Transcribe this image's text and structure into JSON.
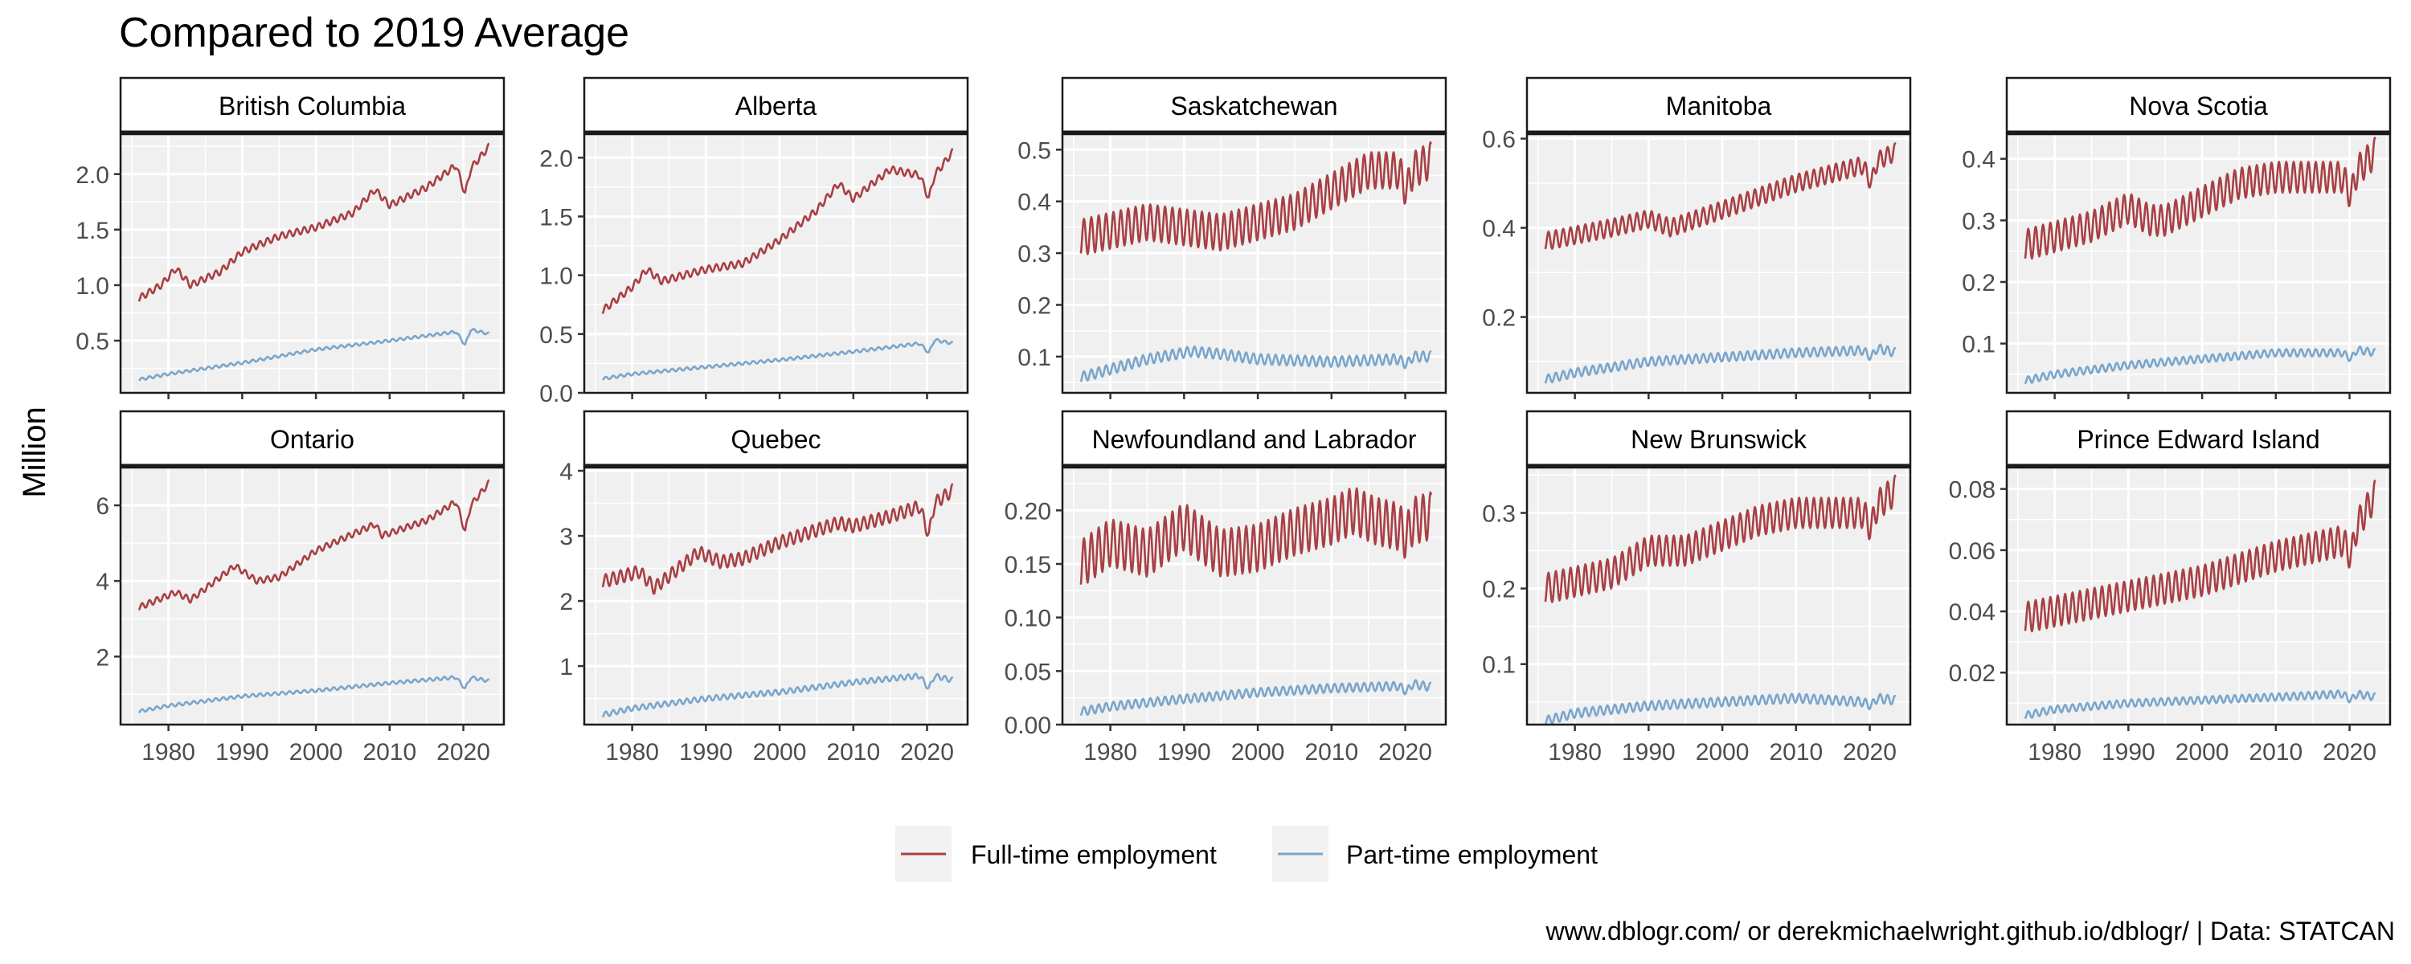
{
  "title": "Compared to 2019 Average",
  "ylabel": "Million",
  "caption": "www.dblogr.com/ or derekmichaelwright.github.io/dblogr/ | Data: STATCAN",
  "legend": {
    "position": "bottom",
    "items": [
      {
        "label": "Full-time employment",
        "color": "#a84044"
      },
      {
        "label": "Part-time employment",
        "color": "#7aa6cc"
      }
    ]
  },
  "style": {
    "panel_background": "#f0f0f0",
    "grid_color": "#ffffff",
    "strip_background": "#ffffff",
    "text_color": "#000000",
    "tick_text_color": "#4d4d4d"
  },
  "chart_data": [
    {
      "type": "line",
      "title": "British Columbia",
      "x_unit": "year",
      "xlim": [
        1973.5,
        2025.5
      ],
      "xticks": [
        1980,
        1990,
        2000,
        2010,
        2020
      ],
      "xtick_labels": [
        "1980",
        "1990",
        "2000",
        "2010",
        "2020"
      ],
      "ylim": [
        0.03,
        2.36
      ],
      "yticks": [
        0.5,
        1.0,
        1.5,
        2.0
      ],
      "ytick_labels": [
        "0.5",
        "1.0",
        "1.5",
        "2.0"
      ],
      "grid": true,
      "series": [
        {
          "name": "Full-time employment",
          "color": "#a84044",
          "seasonal_amplitude": 0.03,
          "x": [
            1976,
            1979,
            1981,
            1983,
            1987,
            1990,
            1995,
            2000,
            2005,
            2008,
            2010,
            2015,
            2019,
            2020.25,
            2021,
            2023.5
          ],
          "y": [
            0.88,
            1.0,
            1.15,
            1.0,
            1.12,
            1.3,
            1.44,
            1.52,
            1.65,
            1.86,
            1.72,
            1.88,
            2.08,
            1.82,
            2.05,
            2.25
          ]
        },
        {
          "name": "Part-time employment",
          "color": "#7aa6cc",
          "seasonal_amplitude": 0.012,
          "x": [
            1976,
            1980,
            1990,
            2000,
            2010,
            2019,
            2020.25,
            2021,
            2023.5
          ],
          "y": [
            0.15,
            0.2,
            0.3,
            0.42,
            0.5,
            0.58,
            0.46,
            0.6,
            0.56
          ]
        }
      ]
    },
    {
      "type": "line",
      "title": "Alberta",
      "x_unit": "year",
      "xlim": [
        1973.5,
        2025.5
      ],
      "xticks": [
        1980,
        1990,
        2000,
        2010,
        2020
      ],
      "xtick_labels": [
        "1980",
        "1990",
        "2000",
        "2010",
        "2020"
      ],
      "ylim": [
        0.0,
        2.2
      ],
      "yticks": [
        0.0,
        0.5,
        1.0,
        1.5,
        2.0
      ],
      "ytick_labels": [
        "0.0",
        "0.5",
        "1.0",
        "1.5",
        "2.0"
      ],
      "grid": true,
      "series": [
        {
          "name": "Full-time employment",
          "color": "#a84044",
          "seasonal_amplitude": 0.03,
          "x": [
            1976,
            1980,
            1982,
            1984,
            1990,
            1995,
            2000,
            2005,
            2008,
            2010,
            2015,
            2019,
            2020.25,
            2021,
            2023.5
          ],
          "y": [
            0.7,
            0.9,
            1.05,
            0.95,
            1.05,
            1.1,
            1.3,
            1.55,
            1.78,
            1.65,
            1.9,
            1.85,
            1.65,
            1.85,
            2.05
          ]
        },
        {
          "name": "Part-time employment",
          "color": "#7aa6cc",
          "seasonal_amplitude": 0.012,
          "x": [
            1976,
            1980,
            1990,
            2000,
            2010,
            2019,
            2020.25,
            2021,
            2023.5
          ],
          "y": [
            0.12,
            0.16,
            0.22,
            0.28,
            0.35,
            0.42,
            0.34,
            0.45,
            0.42
          ]
        }
      ]
    },
    {
      "type": "line",
      "title": "Saskatchewan",
      "x_unit": "year",
      "xlim": [
        1973.5,
        2025.5
      ],
      "xticks": [
        1980,
        1990,
        2000,
        2010,
        2020
      ],
      "xtick_labels": [
        "1980",
        "1990",
        "2000",
        "2010",
        "2020"
      ],
      "ylim": [
        0.03,
        0.53
      ],
      "yticks": [
        0.1,
        0.2,
        0.3,
        0.4,
        0.5
      ],
      "ytick_labels": [
        "0.1",
        "0.2",
        "0.3",
        "0.4",
        "0.5"
      ],
      "grid": true,
      "series": [
        {
          "name": "Full-time employment",
          "color": "#a84044",
          "seasonal_amplitude": 0.035,
          "x": [
            1976,
            1985,
            1990,
            1995,
            2000,
            2005,
            2010,
            2015,
            2019,
            2020.25,
            2021,
            2023.5
          ],
          "y": [
            0.33,
            0.36,
            0.35,
            0.34,
            0.36,
            0.38,
            0.42,
            0.46,
            0.46,
            0.42,
            0.46,
            0.48
          ]
        },
        {
          "name": "Part-time employment",
          "color": "#7aa6cc",
          "seasonal_amplitude": 0.01,
          "x": [
            1976,
            1985,
            1991,
            1995,
            2000,
            2010,
            2019,
            2020.25,
            2021,
            2023.5
          ],
          "y": [
            0.06,
            0.095,
            0.11,
            0.105,
            0.095,
            0.09,
            0.095,
            0.085,
            0.1,
            0.1
          ]
        }
      ]
    },
    {
      "type": "line",
      "title": "Manitoba",
      "x_unit": "year",
      "xlim": [
        1973.5,
        2025.5
      ],
      "xticks": [
        1980,
        1990,
        2000,
        2010,
        2020
      ],
      "xtick_labels": [
        "1980",
        "1990",
        "2000",
        "2010",
        "2020"
      ],
      "ylim": [
        0.03,
        0.61
      ],
      "yticks": [
        0.2,
        0.4,
        0.6
      ],
      "ytick_labels": [
        "0.2",
        "0.4",
        "0.6"
      ],
      "grid": true,
      "series": [
        {
          "name": "Full-time employment",
          "color": "#a84044",
          "seasonal_amplitude": 0.02,
          "x": [
            1976,
            1985,
            1990,
            1993,
            2000,
            2010,
            2019,
            2020.25,
            2021,
            2023.5
          ],
          "y": [
            0.37,
            0.4,
            0.42,
            0.4,
            0.44,
            0.5,
            0.54,
            0.5,
            0.55,
            0.57
          ]
        },
        {
          "name": "Part-time employment",
          "color": "#7aa6cc",
          "seasonal_amplitude": 0.01,
          "x": [
            1976,
            1980,
            1990,
            2000,
            2010,
            2019,
            2020.25,
            2021,
            2023.5
          ],
          "y": [
            0.06,
            0.075,
            0.1,
            0.11,
            0.12,
            0.125,
            0.11,
            0.13,
            0.12
          ]
        }
      ]
    },
    {
      "type": "line",
      "title": "Nova Scotia",
      "x_unit": "year",
      "xlim": [
        1973.5,
        2025.5
      ],
      "xticks": [
        1980,
        1990,
        2000,
        2010,
        2020
      ],
      "xtick_labels": [
        "1980",
        "1990",
        "2000",
        "2010",
        "2020"
      ],
      "ylim": [
        0.02,
        0.44
      ],
      "yticks": [
        0.1,
        0.2,
        0.3,
        0.4
      ],
      "ytick_labels": [
        "0.1",
        "0.2",
        "0.3",
        "0.4"
      ],
      "grid": true,
      "series": [
        {
          "name": "Full-time employment",
          "color": "#a84044",
          "seasonal_amplitude": 0.025,
          "x": [
            1976,
            1985,
            1990,
            1993,
            1995,
            2000,
            2005,
            2010,
            2019,
            2020.25,
            2021,
            2023.5
          ],
          "y": [
            0.26,
            0.29,
            0.32,
            0.3,
            0.3,
            0.33,
            0.36,
            0.37,
            0.37,
            0.34,
            0.38,
            0.41
          ]
        },
        {
          "name": "Part-time employment",
          "color": "#7aa6cc",
          "seasonal_amplitude": 0.006,
          "x": [
            1976,
            1980,
            1990,
            2000,
            2010,
            2019,
            2020.25,
            2021,
            2023.5
          ],
          "y": [
            0.04,
            0.05,
            0.065,
            0.075,
            0.085,
            0.085,
            0.075,
            0.09,
            0.085
          ]
        }
      ]
    },
    {
      "type": "line",
      "title": "Ontario",
      "x_unit": "year",
      "xlim": [
        1973.5,
        2025.5
      ],
      "xticks": [
        1980,
        1990,
        2000,
        2010,
        2020
      ],
      "xtick_labels": [
        "1980",
        "1990",
        "2000",
        "2010",
        "2020"
      ],
      "ylim": [
        0.2,
        7.0
      ],
      "yticks": [
        2,
        4,
        6
      ],
      "ytick_labels": [
        "2",
        "4",
        "6"
      ],
      "grid": true,
      "series": [
        {
          "name": "Full-time employment",
          "color": "#a84044",
          "seasonal_amplitude": 0.08,
          "x": [
            1976,
            1981,
            1983,
            1989,
            1992,
            1995,
            2000,
            2008,
            2009,
            2015,
            2019,
            2020.25,
            2021,
            2023.5
          ],
          "y": [
            3.3,
            3.7,
            3.5,
            4.4,
            4.0,
            4.1,
            4.8,
            5.5,
            5.2,
            5.6,
            6.1,
            5.3,
            6.0,
            6.6
          ]
        },
        {
          "name": "Part-time employment",
          "color": "#7aa6cc",
          "seasonal_amplitude": 0.04,
          "x": [
            1976,
            1980,
            1990,
            2000,
            2010,
            2019,
            2020.25,
            2021,
            2023.5
          ],
          "y": [
            0.55,
            0.7,
            0.95,
            1.1,
            1.3,
            1.45,
            1.15,
            1.45,
            1.35
          ]
        }
      ]
    },
    {
      "type": "line",
      "title": "Quebec",
      "x_unit": "year",
      "xlim": [
        1973.5,
        2025.5
      ],
      "xticks": [
        1980,
        1990,
        2000,
        2010,
        2020
      ],
      "xtick_labels": [
        "1980",
        "1990",
        "2000",
        "2010",
        "2020"
      ],
      "ylim": [
        0.1,
        4.05
      ],
      "yticks": [
        1,
        2,
        3,
        4
      ],
      "ytick_labels": [
        "1",
        "2",
        "3",
        "4"
      ],
      "grid": true,
      "series": [
        {
          "name": "Full-time employment",
          "color": "#a84044",
          "seasonal_amplitude": 0.1,
          "x": [
            1976,
            1981,
            1983,
            1989,
            1992,
            1995,
            2000,
            2008,
            2010,
            2015,
            2019,
            2020.25,
            2021,
            2023.5
          ],
          "y": [
            2.3,
            2.45,
            2.2,
            2.75,
            2.6,
            2.65,
            2.9,
            3.2,
            3.15,
            3.3,
            3.45,
            3.0,
            3.5,
            3.7
          ]
        },
        {
          "name": "Part-time employment",
          "color": "#7aa6cc",
          "seasonal_amplitude": 0.04,
          "x": [
            1976,
            1980,
            1990,
            2000,
            2010,
            2019,
            2020.25,
            2021,
            2023.5
          ],
          "y": [
            0.25,
            0.35,
            0.5,
            0.6,
            0.75,
            0.85,
            0.65,
            0.85,
            0.78
          ]
        }
      ]
    },
    {
      "type": "line",
      "title": "Newfoundland and Labrador",
      "x_unit": "year",
      "xlim": [
        1973.5,
        2025.5
      ],
      "xticks": [
        1980,
        1990,
        2000,
        2010,
        2020
      ],
      "xtick_labels": [
        "1980",
        "1990",
        "2000",
        "2010",
        "2020"
      ],
      "ylim": [
        0.0,
        0.24
      ],
      "yticks": [
        0.0,
        0.05,
        0.1,
        0.15,
        0.2
      ],
      "ytick_labels": [
        "0.00",
        "0.05",
        "0.10",
        "0.15",
        "0.20"
      ],
      "grid": true,
      "series": [
        {
          "name": "Full-time employment",
          "color": "#a84044",
          "seasonal_amplitude": 0.022,
          "x": [
            1976,
            1980,
            1985,
            1990,
            1995,
            2000,
            2005,
            2010,
            2013,
            2016,
            2019,
            2020.25,
            2021,
            2023.5
          ],
          "y": [
            0.15,
            0.17,
            0.16,
            0.185,
            0.16,
            0.165,
            0.18,
            0.19,
            0.2,
            0.19,
            0.185,
            0.175,
            0.19,
            0.195
          ]
        },
        {
          "name": "Part-time employment",
          "color": "#7aa6cc",
          "seasonal_amplitude": 0.004,
          "x": [
            1976,
            1980,
            1990,
            2000,
            2010,
            2019,
            2020.25,
            2021,
            2023.5
          ],
          "y": [
            0.012,
            0.017,
            0.024,
            0.03,
            0.034,
            0.036,
            0.031,
            0.038,
            0.035
          ]
        }
      ]
    },
    {
      "type": "line",
      "title": "New Brunswick",
      "x_unit": "year",
      "xlim": [
        1973.5,
        2025.5
      ],
      "xticks": [
        1980,
        1990,
        2000,
        2010,
        2020
      ],
      "xtick_labels": [
        "1980",
        "1990",
        "2000",
        "2010",
        "2020"
      ],
      "ylim": [
        0.02,
        0.36
      ],
      "yticks": [
        0.1,
        0.2,
        0.3
      ],
      "ytick_labels": [
        "0.1",
        "0.2",
        "0.3"
      ],
      "grid": true,
      "series": [
        {
          "name": "Full-time employment",
          "color": "#a84044",
          "seasonal_amplitude": 0.02,
          "x": [
            1976,
            1985,
            1990,
            1995,
            2000,
            2005,
            2010,
            2019,
            2020.25,
            2021,
            2023.5
          ],
          "y": [
            0.2,
            0.22,
            0.25,
            0.25,
            0.27,
            0.29,
            0.3,
            0.3,
            0.28,
            0.31,
            0.33
          ]
        },
        {
          "name": "Part-time employment",
          "color": "#7aa6cc",
          "seasonal_amplitude": 0.006,
          "x": [
            1976,
            1980,
            1990,
            2000,
            2010,
            2019,
            2020.25,
            2021,
            2023.5
          ],
          "y": [
            0.025,
            0.035,
            0.045,
            0.05,
            0.055,
            0.05,
            0.045,
            0.055,
            0.052
          ]
        }
      ]
    },
    {
      "type": "line",
      "title": "Prince Edward Island",
      "x_unit": "year",
      "xlim": [
        1973.5,
        2025.5
      ],
      "xticks": [
        1980,
        1990,
        2000,
        2010,
        2020
      ],
      "xtick_labels": [
        "1980",
        "1990",
        "2000",
        "2010",
        "2020"
      ],
      "ylim": [
        0.003,
        0.087
      ],
      "yticks": [
        0.02,
        0.04,
        0.06,
        0.08
      ],
      "ytick_labels": [
        "0.02",
        "0.04",
        "0.06",
        "0.08"
      ],
      "grid": true,
      "series": [
        {
          "name": "Full-time employment",
          "color": "#a84044",
          "seasonal_amplitude": 0.005,
          "x": [
            1976,
            1980,
            1990,
            2000,
            2010,
            2019,
            2020.25,
            2021,
            2023.5
          ],
          "y": [
            0.038,
            0.04,
            0.045,
            0.05,
            0.058,
            0.063,
            0.058,
            0.068,
            0.078
          ]
        },
        {
          "name": "Part-time employment",
          "color": "#7aa6cc",
          "seasonal_amplitude": 0.0012,
          "x": [
            1976,
            1980,
            1990,
            2000,
            2010,
            2019,
            2020.25,
            2021,
            2023.5
          ],
          "y": [
            0.006,
            0.008,
            0.01,
            0.011,
            0.012,
            0.013,
            0.011,
            0.013,
            0.012
          ]
        }
      ]
    }
  ]
}
